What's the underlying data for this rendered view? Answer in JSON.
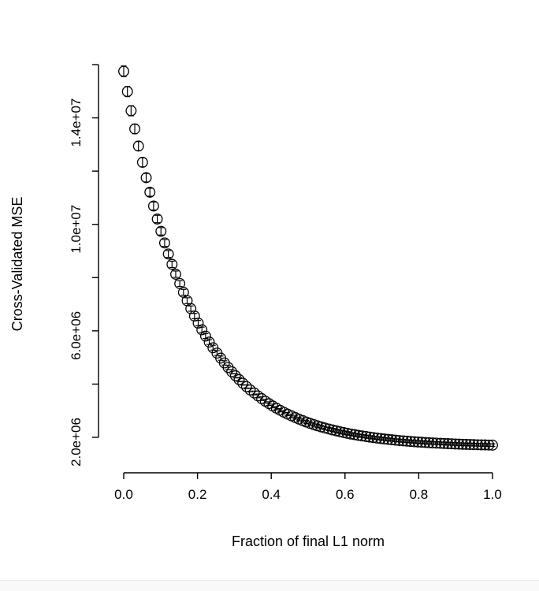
{
  "figure": {
    "background": "#ffffff",
    "axis_color": "#000000",
    "point_color": "#000000"
  },
  "chart_data": {
    "type": "scatter",
    "title": "",
    "xlabel": "Fraction of final L1 norm",
    "ylabel": "Cross-Validated MSE",
    "marker": "open-circle-with-error-bars",
    "grid": false,
    "legend": "none",
    "xlim": [
      0,
      1
    ],
    "ylim": [
      1000000,
      16500000
    ],
    "y_unit": 1000000,
    "x_ticks": [
      0.0,
      0.2,
      0.4,
      0.6,
      0.8,
      1.0
    ],
    "x_tick_labels": [
      "0.0",
      "0.2",
      "0.4",
      "0.6",
      "0.8",
      "1.0"
    ],
    "y_ticks_millions": [
      2,
      4,
      6,
      8,
      10,
      12,
      14,
      16
    ],
    "y_tick_labels": [
      "2.0e+06",
      "",
      "6.0e+06",
      "",
      "1.0e+07",
      "",
      "1.4e+07",
      ""
    ],
    "points_format": [
      "fraction_of_final_L1_norm",
      "cv_mse_millions",
      "se_millions"
    ],
    "points": [
      [
        0.0,
        15.75,
        0.2
      ],
      [
        0.01,
        14.988,
        0.19
      ],
      [
        0.02,
        14.267,
        0.19
      ],
      [
        0.03,
        13.585,
        0.18
      ],
      [
        0.04,
        12.94,
        0.17
      ],
      [
        0.051,
        12.33,
        0.17
      ],
      [
        0.061,
        11.753,
        0.16
      ],
      [
        0.071,
        11.207,
        0.15
      ],
      [
        0.081,
        10.69,
        0.15
      ],
      [
        0.091,
        10.201,
        0.14
      ],
      [
        0.101,
        9.739,
        0.14
      ],
      [
        0.111,
        9.302,
        0.13
      ],
      [
        0.121,
        8.888,
        0.13
      ],
      [
        0.131,
        8.497,
        0.12
      ],
      [
        0.141,
        8.127,
        0.12
      ],
      [
        0.152,
        7.777,
        0.11
      ],
      [
        0.162,
        7.446,
        0.11
      ],
      [
        0.172,
        7.133,
        0.11
      ],
      [
        0.182,
        6.836,
        0.1
      ],
      [
        0.192,
        6.556,
        0.1
      ],
      [
        0.202,
        6.291,
        0.1
      ],
      [
        0.212,
        6.04,
        0.1
      ],
      [
        0.222,
        5.803,
        0.09
      ],
      [
        0.232,
        5.578,
        0.09
      ],
      [
        0.242,
        5.366,
        0.09
      ],
      [
        0.253,
        5.165,
        0.09
      ],
      [
        0.263,
        4.975,
        0.08
      ],
      [
        0.273,
        4.795,
        0.08
      ],
      [
        0.283,
        4.625,
        0.08
      ],
      [
        0.293,
        4.464,
        0.08
      ],
      [
        0.303,
        4.312,
        0.08
      ],
      [
        0.313,
        4.168,
        0.08
      ],
      [
        0.323,
        4.032,
        0.07
      ],
      [
        0.333,
        3.903,
        0.07
      ],
      [
        0.343,
        3.781,
        0.07
      ],
      [
        0.354,
        3.666,
        0.07
      ],
      [
        0.364,
        3.557,
        0.07
      ],
      [
        0.374,
        3.454,
        0.07
      ],
      [
        0.384,
        3.357,
        0.07
      ],
      [
        0.394,
        3.265,
        0.07
      ],
      [
        0.404,
        3.177,
        0.07
      ],
      [
        0.414,
        3.095,
        0.06
      ],
      [
        0.424,
        3.017,
        0.06
      ],
      [
        0.434,
        2.943,
        0.06
      ],
      [
        0.444,
        2.873,
        0.06
      ],
      [
        0.455,
        2.807,
        0.06
      ],
      [
        0.465,
        2.744,
        0.06
      ],
      [
        0.475,
        2.685,
        0.06
      ],
      [
        0.485,
        2.629,
        0.06
      ],
      [
        0.495,
        2.576,
        0.06
      ],
      [
        0.505,
        2.526,
        0.06
      ],
      [
        0.515,
        2.479,
        0.06
      ],
      [
        0.525,
        2.434,
        0.06
      ],
      [
        0.535,
        2.392,
        0.06
      ],
      [
        0.545,
        2.352,
        0.06
      ],
      [
        0.556,
        2.314,
        0.06
      ],
      [
        0.566,
        2.278,
        0.06
      ],
      [
        0.576,
        2.244,
        0.06
      ],
      [
        0.586,
        2.212,
        0.06
      ],
      [
        0.596,
        2.181,
        0.06
      ],
      [
        0.606,
        2.153,
        0.06
      ],
      [
        0.616,
        2.125,
        0.05
      ],
      [
        0.626,
        2.1,
        0.05
      ],
      [
        0.636,
        2.075,
        0.05
      ],
      [
        0.646,
        2.052,
        0.05
      ],
      [
        0.657,
        2.031,
        0.05
      ],
      [
        0.667,
        2.01,
        0.05
      ],
      [
        0.677,
        1.991,
        0.05
      ],
      [
        0.687,
        1.972,
        0.05
      ],
      [
        0.697,
        1.955,
        0.05
      ],
      [
        0.707,
        1.938,
        0.05
      ],
      [
        0.717,
        1.923,
        0.05
      ],
      [
        0.727,
        1.908,
        0.05
      ],
      [
        0.737,
        1.894,
        0.05
      ],
      [
        0.747,
        1.881,
        0.05
      ],
      [
        0.758,
        1.869,
        0.05
      ],
      [
        0.768,
        1.857,
        0.05
      ],
      [
        0.778,
        1.846,
        0.05
      ],
      [
        0.788,
        1.835,
        0.05
      ],
      [
        0.798,
        1.825,
        0.05
      ],
      [
        0.808,
        1.816,
        0.05
      ],
      [
        0.818,
        1.807,
        0.05
      ],
      [
        0.828,
        1.798,
        0.05
      ],
      [
        0.838,
        1.79,
        0.05
      ],
      [
        0.848,
        1.783,
        0.05
      ],
      [
        0.859,
        1.776,
        0.05
      ],
      [
        0.869,
        1.769,
        0.05
      ],
      [
        0.879,
        1.763,
        0.05
      ],
      [
        0.889,
        1.757,
        0.05
      ],
      [
        0.899,
        1.751,
        0.05
      ],
      [
        0.909,
        1.745,
        0.05
      ],
      [
        0.919,
        1.74,
        0.05
      ],
      [
        0.929,
        1.735,
        0.05
      ],
      [
        0.939,
        1.731,
        0.05
      ],
      [
        0.949,
        1.726,
        0.05
      ],
      [
        0.96,
        1.722,
        0.05
      ],
      [
        0.97,
        1.718,
        0.05
      ],
      [
        0.98,
        1.715,
        0.05
      ],
      [
        0.99,
        1.711,
        0.05
      ],
      [
        1.0,
        1.708,
        0.05
      ]
    ]
  }
}
